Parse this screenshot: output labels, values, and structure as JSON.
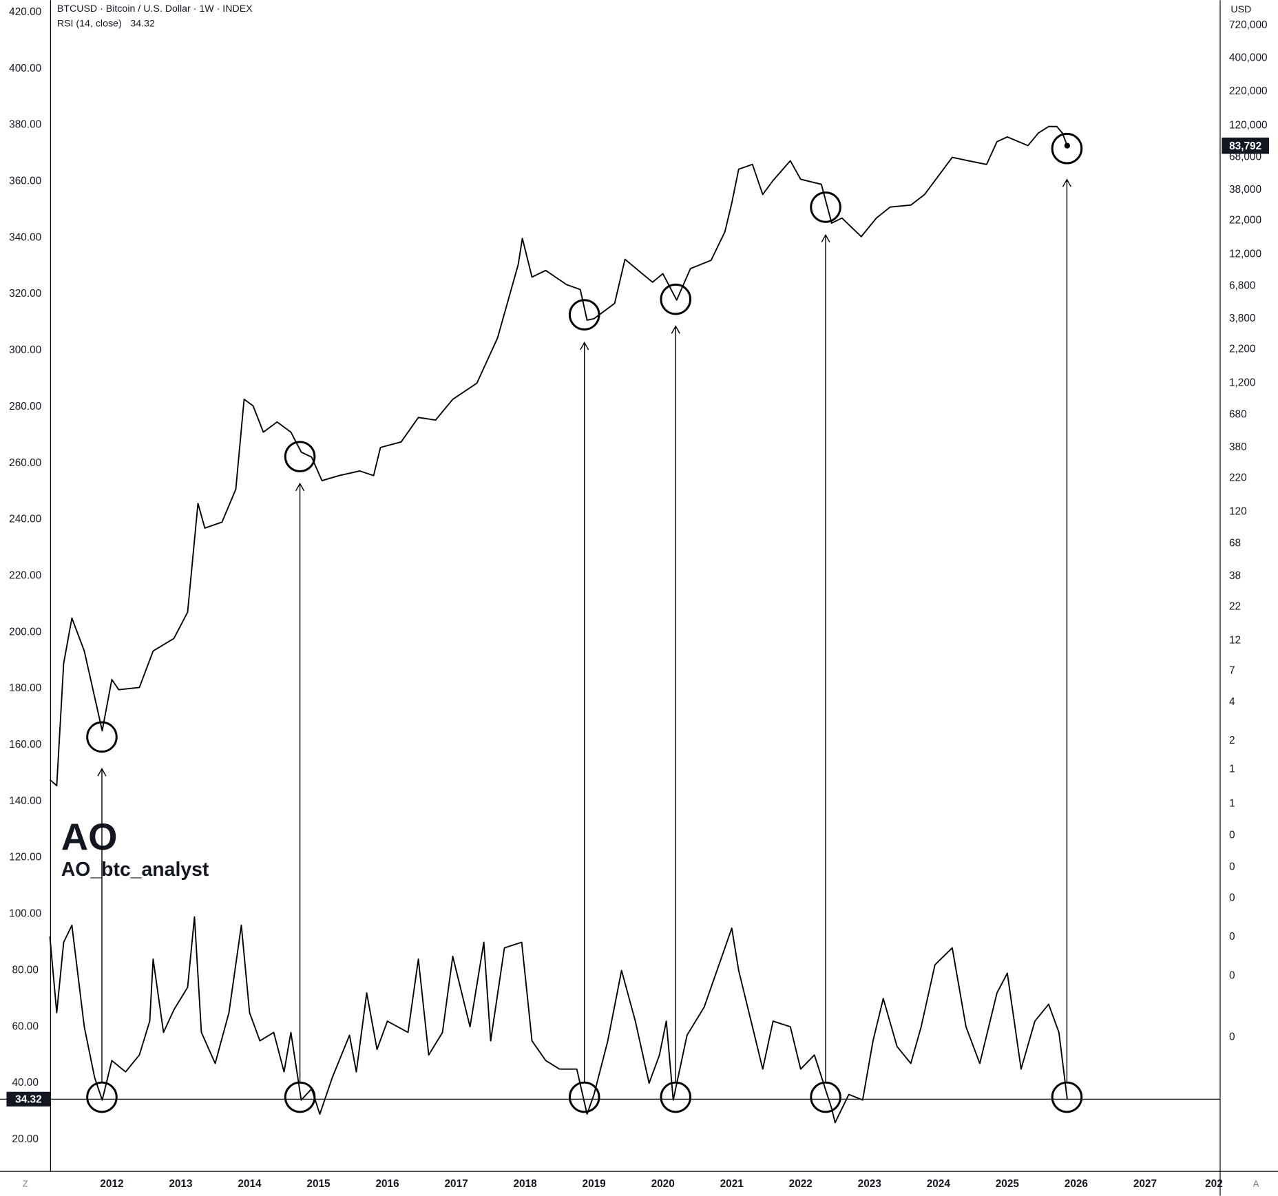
{
  "chart_data": {
    "type": "line",
    "title": "BTCUSD · Bitcoin / U.S. Dollar · 1W · INDEX",
    "subtitle": "RSI (14, close)",
    "last_value": 34.32,
    "price_last": {
      "value": 83792,
      "label": "83,792"
    },
    "y2label": "USD",
    "annotations": [
      "AO",
      "AO_btc_analyst"
    ],
    "buttons": [
      "Z",
      "A"
    ],
    "log_scale_y2": true,
    "color": "#000000",
    "xlim": [
      2011.11,
      2028.09
    ],
    "xticks": [
      2012,
      2013,
      2014,
      2015,
      2016,
      2017,
      2018,
      2019,
      2020,
      2021,
      2022,
      2023,
      2024,
      2025,
      2026,
      2027,
      {
        "value": 2028,
        "label": "202"
      }
    ],
    "ylim": [
      8.7,
      424.3
    ],
    "yticks": [
      {
        "value": 20,
        "label": "20.00"
      },
      {
        "value": 40,
        "label": "40.00"
      },
      {
        "value": 60,
        "label": "60.00"
      },
      {
        "value": 80,
        "label": "80.00"
      },
      {
        "value": 100,
        "label": "100.00"
      },
      {
        "value": 120,
        "label": "120.00"
      },
      {
        "value": 140,
        "label": "140.00"
      },
      {
        "value": 160,
        "label": "160.00"
      },
      {
        "value": 180,
        "label": "180.00"
      },
      {
        "value": 200,
        "label": "200.00"
      },
      {
        "value": 220,
        "label": "220.00"
      },
      {
        "value": 240,
        "label": "240.00"
      },
      {
        "value": 260,
        "label": "260.00"
      },
      {
        "value": 280,
        "label": "280.00"
      },
      {
        "value": 300,
        "label": "300.00"
      },
      {
        "value": 320,
        "label": "320.00"
      },
      {
        "value": 340,
        "label": "340.00"
      },
      {
        "value": 360,
        "label": "360.00"
      },
      {
        "value": 380,
        "label": "380.00"
      },
      {
        "value": 400,
        "label": "400.00"
      },
      {
        "value": 420,
        "label": "420.00"
      }
    ],
    "y2lim": [
      0.00091,
      1130000
    ],
    "y2ticks": [
      {
        "value": 720000,
        "label": "720,000"
      },
      {
        "value": 400000,
        "label": "400,000"
      },
      {
        "value": 220000,
        "label": "220,000"
      },
      {
        "value": 120000,
        "label": "120,000"
      },
      {
        "value": 68000,
        "label": "68,000"
      },
      {
        "value": 38000,
        "label": "38,000"
      },
      {
        "value": 22000,
        "label": "22,000"
      },
      {
        "value": 12000,
        "label": "12,000"
      },
      {
        "value": 6800,
        "label": "6,800"
      },
      {
        "value": 3800,
        "label": "3,800"
      },
      {
        "value": 2200,
        "label": "2,200"
      },
      {
        "value": 1200,
        "label": "1,200"
      },
      680,
      380,
      220,
      120,
      68,
      38,
      22,
      12,
      7,
      4,
      2,
      {
        "value": 1.2,
        "label": "1"
      },
      {
        "value": 0.65,
        "label": "1"
      },
      {
        "value": 0.37,
        "label": "0"
      },
      {
        "value": 0.21,
        "label": "0"
      },
      {
        "value": 0.12,
        "label": "0"
      },
      {
        "value": 0.06,
        "label": "0"
      },
      {
        "value": 0.03,
        "label": "0"
      },
      {
        "value": 0.01,
        "label": "0"
      }
    ],
    "series": [
      {
        "name": "BTCUSD",
        "color": "#000000",
        "axis": "y2",
        "x": [
          2011.1,
          2011.2,
          2011.3,
          2011.42,
          2011.6,
          2011.86,
          2012.0,
          2012.1,
          2012.4,
          2012.6,
          2012.9,
          2013.1,
          2013.25,
          2013.35,
          2013.6,
          2013.8,
          2013.92,
          2014.05,
          2014.2,
          2014.4,
          2014.6,
          2014.75,
          2014.9,
          2015.05,
          2015.3,
          2015.6,
          2015.8,
          2015.9,
          2016.2,
          2016.45,
          2016.7,
          2016.95,
          2017.3,
          2017.6,
          2017.9,
          2017.96,
          2018.1,
          2018.3,
          2018.6,
          2018.8,
          2018.9,
          2019.0,
          2019.3,
          2019.45,
          2019.7,
          2019.85,
          2020.0,
          2020.2,
          2020.4,
          2020.7,
          2020.9,
          2021.0,
          2021.1,
          2021.3,
          2021.45,
          2021.6,
          2021.85,
          2022.0,
          2022.3,
          2022.45,
          2022.6,
          2022.88,
          2023.1,
          2023.3,
          2023.6,
          2023.8,
          2024.2,
          2024.5,
          2024.7,
          2024.85,
          2025.0,
          2025.3,
          2025.45,
          2025.6,
          2025.72,
          2025.8,
          2025.87
        ],
        "values": [
          1.0,
          0.9,
          8,
          18,
          10,
          2.4,
          6,
          5,
          5.2,
          10,
          12.5,
          20,
          140,
          90,
          100,
          180,
          900,
          800,
          500,
          600,
          500,
          350,
          320,
          210,
          230,
          250,
          230,
          380,
          420,
          650,
          620,
          900,
          1200,
          2700,
          10000,
          16000,
          8000,
          9000,
          7000,
          6400,
          3700,
          3800,
          5000,
          11000,
          8500,
          7300,
          8500,
          5300,
          9300,
          10800,
          18000,
          30000,
          55000,
          60000,
          35000,
          45000,
          64000,
          46000,
          42000,
          21000,
          23000,
          16500,
          23000,
          28000,
          29000,
          35000,
          68000,
          63000,
          60000,
          90000,
          98000,
          84000,
          105000,
          118000,
          118000,
          105000,
          83792
        ]
      },
      {
        "name": "RSI",
        "color": "#000000",
        "x": [
          2011.1,
          2011.2,
          2011.3,
          2011.42,
          2011.6,
          2011.75,
          2011.86,
          2012.0,
          2012.2,
          2012.4,
          2012.55,
          2012.6,
          2012.75,
          2012.9,
          2013.1,
          2013.2,
          2013.3,
          2013.5,
          2013.7,
          2013.88,
          2014.0,
          2014.15,
          2014.35,
          2014.5,
          2014.6,
          2014.75,
          2014.9,
          2015.02,
          2015.2,
          2015.45,
          2015.55,
          2015.7,
          2015.85,
          2016.0,
          2016.3,
          2016.45,
          2016.6,
          2016.8,
          2016.95,
          2017.2,
          2017.4,
          2017.5,
          2017.7,
          2017.95,
          2018.1,
          2018.3,
          2018.5,
          2018.75,
          2018.9,
          2019.0,
          2019.2,
          2019.4,
          2019.6,
          2019.8,
          2019.95,
          2020.05,
          2020.15,
          2020.35,
          2020.6,
          2020.9,
          2021.0,
          2021.1,
          2021.3,
          2021.45,
          2021.6,
          2021.85,
          2022.0,
          2022.2,
          2022.45,
          2022.5,
          2022.7,
          2022.9,
          2023.05,
          2023.2,
          2023.4,
          2023.6,
          2023.75,
          2023.95,
          2024.2,
          2024.4,
          2024.6,
          2024.85,
          2025.0,
          2025.2,
          2025.4,
          2025.6,
          2025.75,
          2025.87
        ],
        "values": [
          92,
          65,
          90,
          96,
          60,
          42,
          34,
          48,
          44,
          50,
          62,
          84,
          58,
          66,
          74,
          99,
          58,
          47,
          65,
          96,
          65,
          55,
          58,
          44,
          58,
          34,
          38,
          29,
          42,
          57,
          44,
          72,
          52,
          62,
          58,
          84,
          50,
          58,
          85,
          60,
          90,
          55,
          88,
          90,
          55,
          48,
          45,
          45,
          29,
          36,
          55,
          80,
          62,
          40,
          50,
          62,
          34,
          57,
          67,
          88,
          95,
          80,
          60,
          45,
          62,
          60,
          45,
          50,
          31,
          26,
          36,
          34,
          55,
          70,
          53,
          47,
          60,
          82,
          88,
          60,
          47,
          72,
          79,
          45,
          62,
          68,
          58,
          34.32
        ]
      }
    ]
  }
}
